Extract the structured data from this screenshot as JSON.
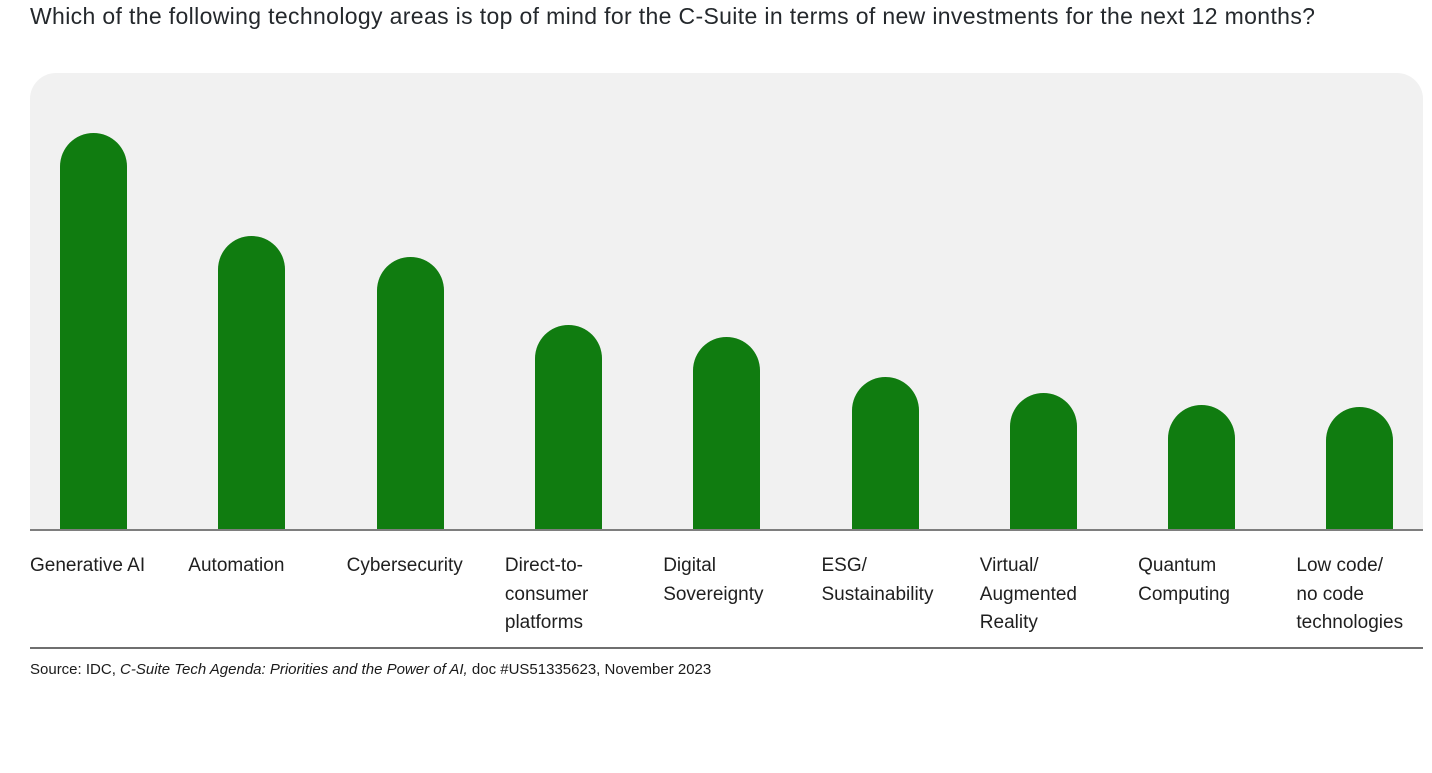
{
  "chart_data": {
    "type": "bar",
    "title": "Which of the following technology areas is top of mind for the C-Suite in terms of new investments for the next 12 months?",
    "categories": [
      "Generative AI",
      "Automation",
      "Cybersecurity",
      "Direct-to-\nconsumer\nplatforms",
      "Digital\nSovereignty",
      "ESG/\nSustainability",
      "Virtual/\nAugmented\nReality",
      "Quantum\nComputing",
      "Low code/\nno code\ntechnologies"
    ],
    "values": [
      100,
      74,
      68.7,
      51.5,
      48.5,
      38.4,
      34.3,
      31.3,
      30.8
    ],
    "value_note": "No value axis, gridlines or data labels are shown in the figure; values are estimated bar heights as a percentage of the tallest bar (Generative AI = 100).",
    "xlabel": "",
    "ylabel": "",
    "legend": null,
    "grid": false,
    "bar_color": "#107C10",
    "plot_bg": "#F1F1F1",
    "axis_line_color": "#7E7E7E"
  },
  "footer": {
    "source_prefix": "Source: IDC, ",
    "source_italic": "C-Suite Tech Agenda: Priorities and the Power of AI,",
    "source_suffix": " doc #US51335623, November 2023"
  }
}
